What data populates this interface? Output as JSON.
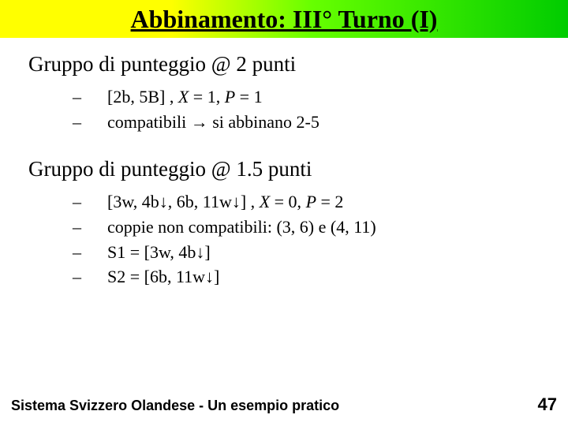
{
  "title": "Abbinamento: III° Turno (I)",
  "group1": {
    "heading": "Gruppo di punteggio @ 2 punti",
    "items": [
      {
        "prefix": "[2b, 5B] , ",
        "var1": "X",
        "eq1": " = 1, ",
        "var2": "P",
        "eq2": " = 1"
      },
      {
        "text1": "compatibili  ",
        "arrow": "→",
        "text2": " si abbinano  2-5"
      }
    ]
  },
  "group2": {
    "heading": "Gruppo di punteggio @ 1.5 punti",
    "items": [
      {
        "prefix": "[3w, 4b↓, 6b, 11w↓] , ",
        "var1": "X",
        "eq1": " = 0, ",
        "var2": "P",
        "eq2": " = 2"
      },
      {
        "plain": "coppie non compatibili: (3, 6) e (4, 11)"
      },
      {
        "plain": "S1 = [3w, 4b↓]"
      },
      {
        "plain": "S2 = [6b, 11w↓]"
      }
    ]
  },
  "footer": {
    "left": "Sistema Svizzero Olandese - Un esempio pratico",
    "page": "47"
  },
  "colors": {
    "title_gradient_start": "#ffff00",
    "title_gradient_end": "#00cc00",
    "text": "#000000",
    "background": "#ffffff"
  }
}
